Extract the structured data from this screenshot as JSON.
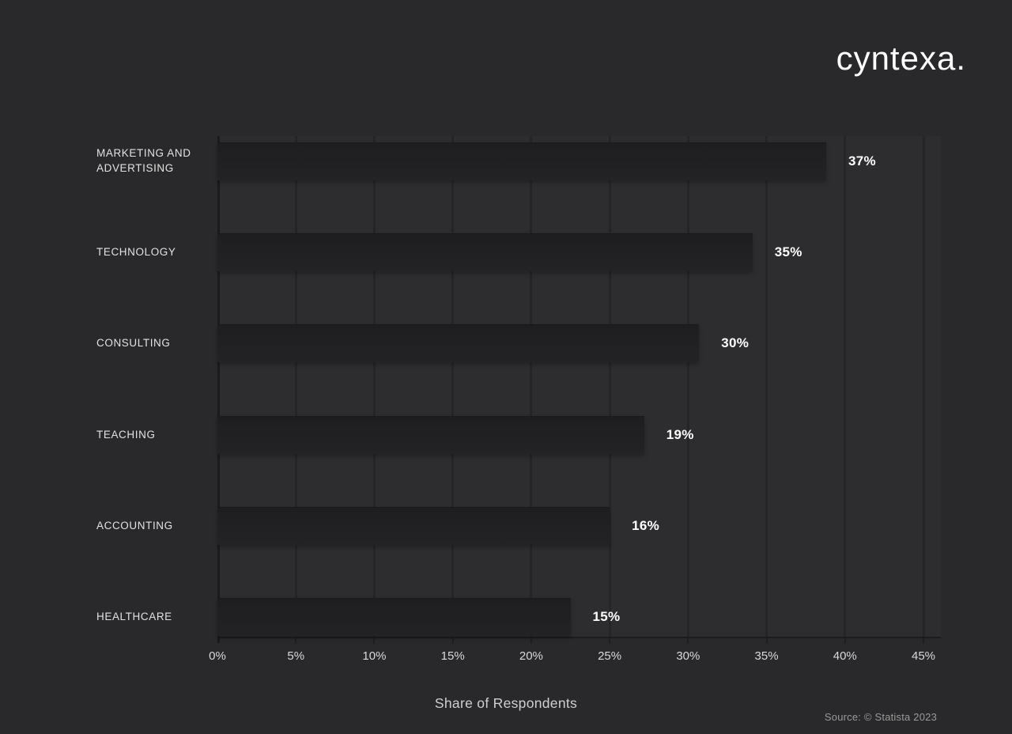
{
  "brand": {
    "logo_text": "cyntexa."
  },
  "chart_data": {
    "type": "bar",
    "orientation": "horizontal",
    "categories": [
      "MARKETING AND ADVERTISING",
      "TECHNOLOGY",
      "CONSULTING",
      "TEACHING",
      "ACCOUNTING",
      "HEALTHCARE"
    ],
    "values": [
      37,
      35,
      30,
      19,
      16,
      15
    ],
    "value_labels": [
      "37%",
      "35%",
      "30%",
      "19%",
      "16%",
      "15%"
    ],
    "bar_visual_percent": [
      38.8,
      34.1,
      30.7,
      27.2,
      25.0,
      22.5
    ],
    "xlabel": "Share of Respondents",
    "x_ticks": [
      "0%",
      "5%",
      "10%",
      "15%",
      "20%",
      "25%",
      "30%",
      "35%",
      "40%",
      "45%"
    ],
    "xlim": [
      0,
      45
    ],
    "x_tick_step": 5,
    "grid": "vertical",
    "legend_position": "none",
    "colors": {
      "page_background": "#29292b",
      "plot_background": "#2d2d2f",
      "bar": "#212124",
      "gridline": "#252528",
      "axis_line": "#1b1b1c",
      "category_text": "#e2e2e2",
      "value_text": "#ffffff",
      "tick_text": "#dadada",
      "xlabel_text": "#cfd0d0",
      "source_text": "#9a9a9a",
      "logo_text": "#ffffff"
    }
  },
  "footer": {
    "source": "Source: © Statista 2023"
  }
}
